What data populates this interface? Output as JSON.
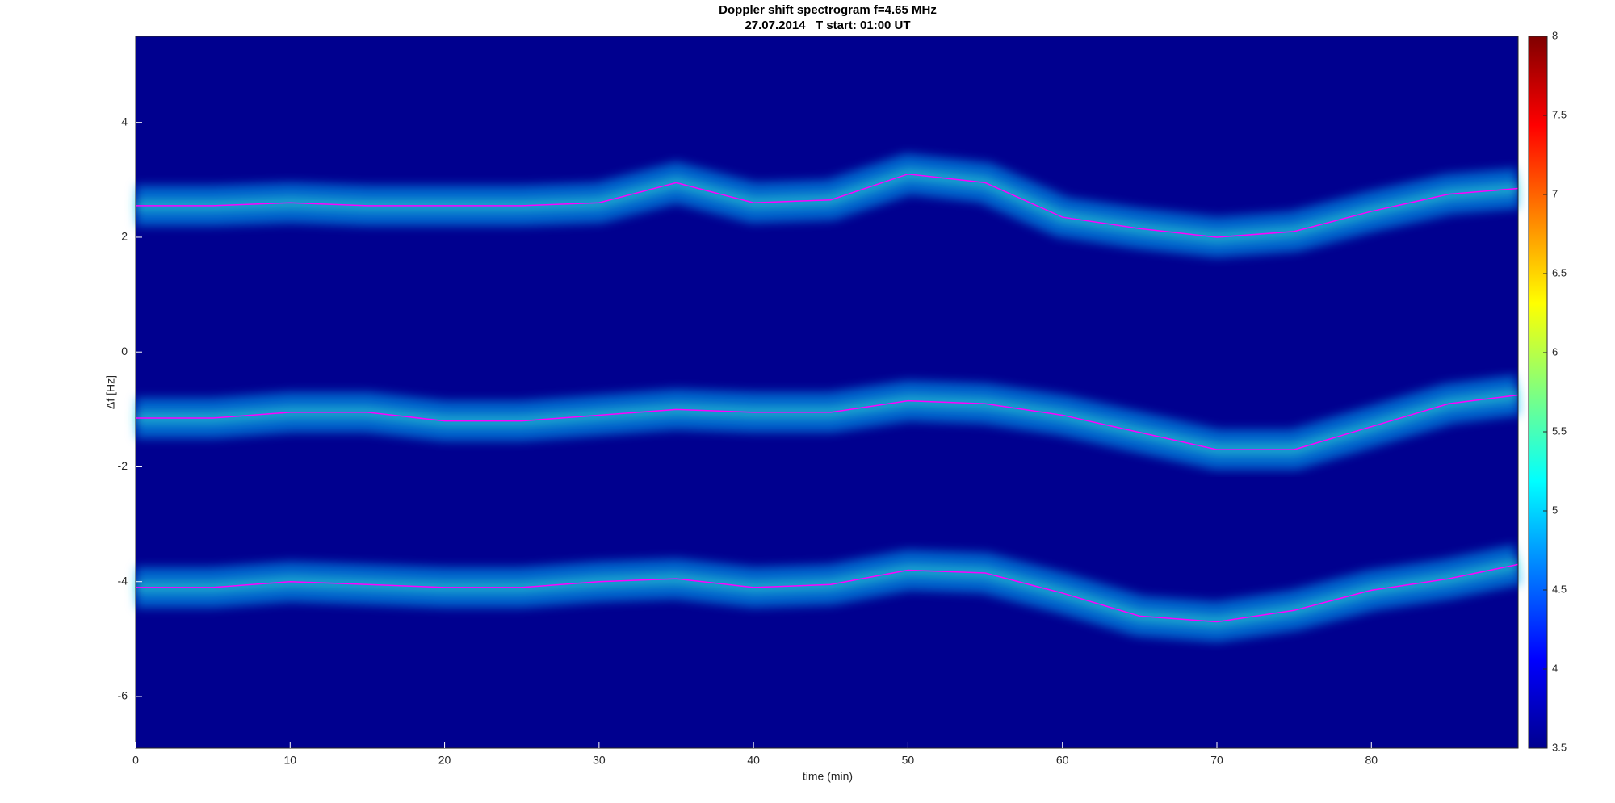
{
  "chart_data": {
    "type": "spectrogram",
    "title": "Doppler shift spectrogram f=4.65 MHz",
    "subtitle": "27.07.2014   T start: 01:00 UT",
    "xlabel": "time (min)",
    "ylabel": "Δf [Hz]",
    "x": [
      0,
      5,
      10,
      15,
      20,
      25,
      30,
      35,
      40,
      45,
      50,
      55,
      60,
      65,
      70,
      75,
      80,
      85,
      89.5
    ],
    "series": [
      {
        "color": "#ff00ff",
        "values": [
          2.55,
          2.55,
          2.6,
          2.55,
          2.55,
          2.55,
          2.6,
          2.95,
          2.6,
          2.65,
          3.1,
          2.95,
          2.35,
          2.15,
          2.0,
          2.1,
          2.45,
          2.75,
          2.85
        ]
      },
      {
        "color": "#ff00ff",
        "values": [
          -1.15,
          -1.15,
          -1.05,
          -1.05,
          -1.2,
          -1.2,
          -1.1,
          -1.0,
          -1.05,
          -1.05,
          -0.85,
          -0.9,
          -1.1,
          -1.4,
          -1.7,
          -1.7,
          -1.3,
          -0.9,
          -0.75
        ]
      },
      {
        "color": "#ff00ff",
        "values": [
          -4.1,
          -4.1,
          -4.0,
          -4.05,
          -4.1,
          -4.1,
          -4.0,
          -3.95,
          -4.1,
          -4.05,
          -3.8,
          -3.85,
          -4.2,
          -4.6,
          -4.7,
          -4.5,
          -4.15,
          -3.95,
          -3.7
        ]
      }
    ],
    "background": "#00008f",
    "xlim": [
      0,
      89.5
    ],
    "xticks": [
      0,
      10,
      20,
      30,
      40,
      50,
      60,
      70,
      80
    ],
    "ylim": [
      -6.9,
      5.5
    ],
    "yticks": [
      -6,
      -4,
      -2,
      0,
      2,
      4
    ],
    "clim": [
      3.5,
      8
    ],
    "cticks": [
      3.5,
      4,
      4.5,
      5,
      5.5,
      6,
      6.5,
      7,
      7.5,
      8
    ]
  }
}
